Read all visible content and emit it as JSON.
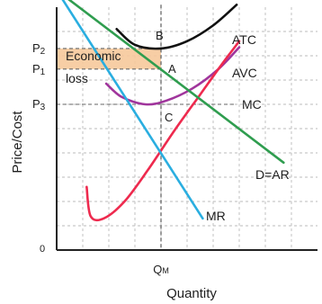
{
  "chart_data": {
    "type": "line",
    "title": "",
    "xlabel": "Quantity",
    "ylabel": "Price/Cost",
    "xlim": [
      0,
      10
    ],
    "ylim": [
      0,
      10
    ],
    "grid": true,
    "x_ticks": [
      {
        "label": "QM",
        "value": 4.0
      }
    ],
    "y_ticks": [
      {
        "label": "P2",
        "value": 8.3
      },
      {
        "label": "P1",
        "value": 7.45
      },
      {
        "label": "P3",
        "value": 6.0
      },
      {
        "label": "0",
        "value": 0
      }
    ],
    "series": [
      {
        "name": "ATC",
        "color": "#111111",
        "x": [
          2.3,
          3.0,
          4.0,
          5.0,
          6.0,
          6.9
        ],
        "y": [
          9.1,
          8.45,
          8.3,
          8.6,
          9.25,
          10.1
        ]
      },
      {
        "name": "AVC",
        "color": "#a0359c",
        "x": [
          1.9,
          2.5,
          3.4,
          4.2,
          5.2,
          6.2,
          7.0
        ],
        "y": [
          6.85,
          6.3,
          6.0,
          6.15,
          6.65,
          7.45,
          8.35
        ]
      },
      {
        "name": "MC",
        "color": "#ee2a4e",
        "x": [
          1.15,
          1.3,
          1.8,
          2.6,
          3.5,
          4.5,
          5.5,
          6.3,
          7.0
        ],
        "y": [
          2.6,
          1.4,
          1.3,
          2.0,
          3.3,
          4.9,
          6.4,
          7.6,
          8.6
        ]
      },
      {
        "name": "D=AR",
        "color": "#2f9d4f",
        "x": [
          0,
          8.7
        ],
        "y": [
          10.7,
          3.6
        ]
      },
      {
        "name": "MR",
        "color": "#2aaee0",
        "x": [
          0,
          5.6
        ],
        "y": [
          10.7,
          1.3
        ]
      }
    ],
    "points": [
      {
        "label": "B",
        "x": 4.0,
        "y": 8.3
      },
      {
        "label": "A",
        "x": 4.0,
        "y": 7.45
      },
      {
        "label": "C",
        "x": 4.0,
        "y": 6.0
      }
    ],
    "shaded_region": {
      "label_line1": "Economic",
      "label_line2": "loss",
      "x": [
        0,
        4.0
      ],
      "y": [
        7.45,
        8.3
      ],
      "color": "#f6c99b"
    }
  }
}
